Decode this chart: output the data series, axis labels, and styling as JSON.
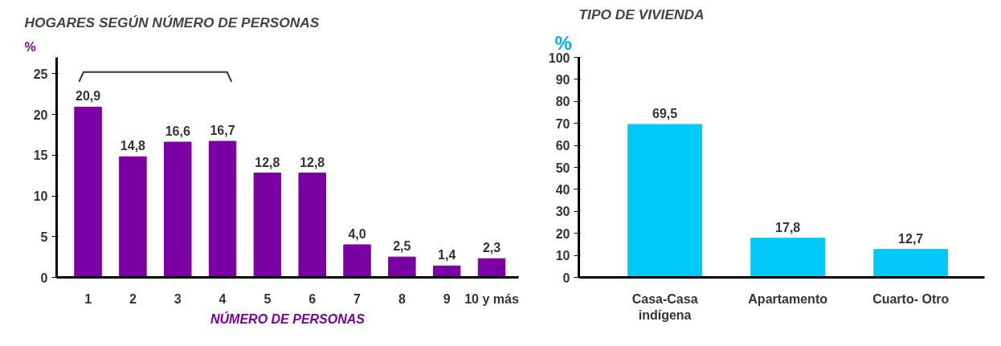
{
  "chart_data": [
    {
      "type": "bar",
      "title": "HOGARES SEGÚN NÚMERO DE PERSONAS",
      "ylabel": "%",
      "xlabel": "NÚMERO DE PERSONAS",
      "categories": [
        "1",
        "2",
        "3",
        "4",
        "5",
        "6",
        "7",
        "8",
        "9",
        "10 y más"
      ],
      "values": [
        20.9,
        14.8,
        16.6,
        16.7,
        12.8,
        12.8,
        4.0,
        2.5,
        1.4,
        2.3
      ],
      "color": "#7b00a3",
      "ylim": [
        0,
        27
      ],
      "yticks": [
        0,
        5,
        10,
        15,
        20,
        25
      ],
      "value_labels": [
        "20,9",
        "14,8",
        "16,6",
        "16,7",
        "12,8",
        "12,8",
        "4,0",
        "2,5",
        "1,4",
        "2,3"
      ],
      "grid": false
    },
    {
      "type": "bar",
      "title": "TIPO DE VIVIENDA",
      "ylabel": "%",
      "categories": [
        "Casa-Casa indígena",
        "Apartamento",
        "Cuarto- Otro"
      ],
      "values": [
        69.5,
        17.8,
        12.7
      ],
      "color": "#00c8f8",
      "ylim": [
        0,
        100
      ],
      "yticks": [
        0,
        10,
        20,
        30,
        40,
        50,
        60,
        70,
        80,
        90,
        100
      ],
      "value_labels": [
        "69,5",
        "17,8",
        "12,7"
      ],
      "grid": false
    }
  ]
}
